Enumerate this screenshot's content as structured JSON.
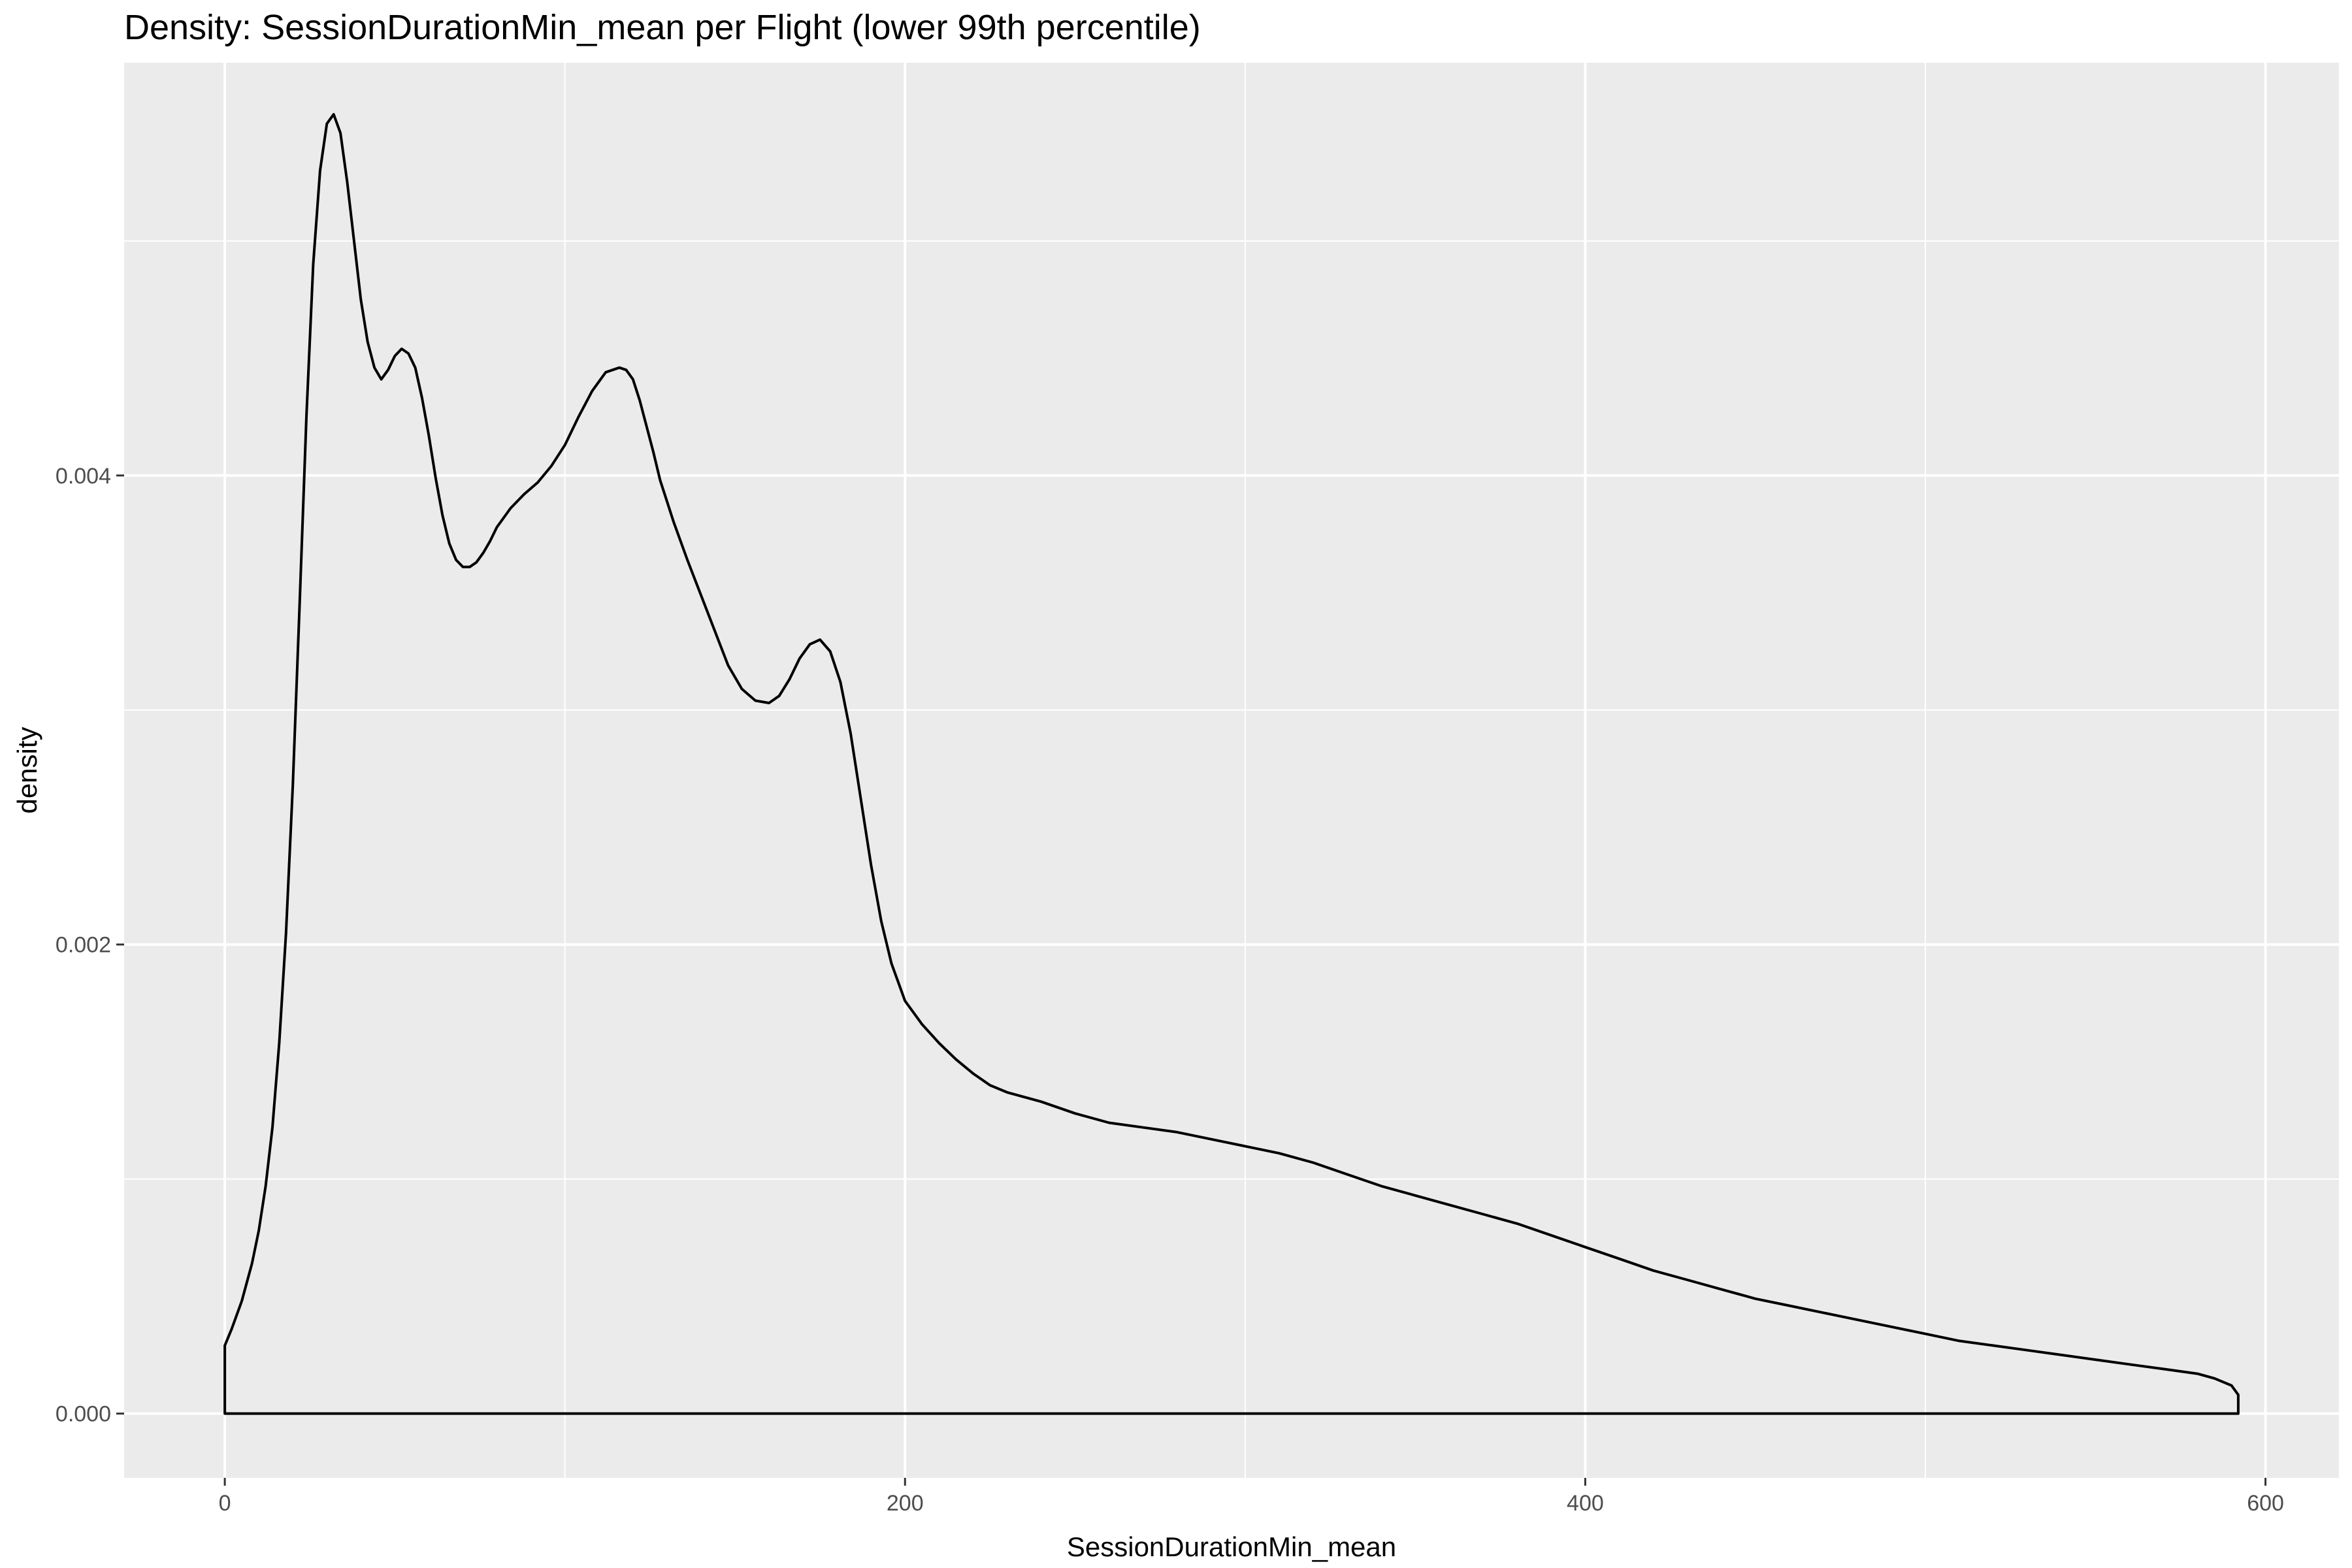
{
  "chart_data": {
    "type": "area",
    "title": "Density: SessionDurationMin_mean per Flight (lower 99th percentile)",
    "xlabel": "SessionDurationMin_mean",
    "ylabel": "density",
    "xlim": [
      -29.6,
      621.6
    ],
    "ylim": [
      -0.000274,
      0.00576
    ],
    "x_ticks": [
      0,
      200,
      400,
      600
    ],
    "x_tick_labels": [
      "0",
      "200",
      "400",
      "600"
    ],
    "y_ticks": [
      0.0,
      0.002,
      0.004
    ],
    "y_tick_labels": [
      "0.000",
      "0.002",
      "0.004"
    ],
    "x_minor_ticks": [
      100,
      300,
      500
    ],
    "y_minor_ticks": [
      0.001,
      0.003,
      0.005
    ],
    "grid": true,
    "colors": {
      "panel_background": "#ebebeb",
      "grid": "#ffffff",
      "line": "#000000",
      "fill": "none"
    },
    "series": [
      {
        "x": [
          0,
          2,
          5,
          8,
          10,
          12,
          14,
          16,
          18,
          20,
          22,
          24,
          26,
          28,
          30,
          32,
          34,
          36,
          38,
          40,
          42,
          44,
          46,
          48,
          50,
          52,
          54,
          56,
          58,
          60,
          62,
          64,
          66,
          68,
          70,
          72,
          74,
          76,
          78,
          80,
          84,
          88,
          92,
          96,
          100,
          104,
          108,
          112,
          116,
          118,
          120,
          122,
          124,
          126,
          128,
          132,
          136,
          140,
          144,
          148,
          152,
          156,
          160,
          163,
          166,
          169,
          172,
          175,
          178,
          181,
          184,
          187,
          190,
          193,
          196,
          200,
          205,
          210,
          215,
          220,
          225,
          230,
          240,
          250,
          260,
          270,
          280,
          290,
          300,
          310,
          320,
          330,
          340,
          350,
          360,
          370,
          380,
          390,
          400,
          410,
          420,
          430,
          440,
          450,
          460,
          470,
          480,
          490,
          500,
          510,
          520,
          530,
          540,
          550,
          560,
          570,
          580,
          585,
          590,
          592
        ],
        "y": [
          0.00029,
          0.00036,
          0.00048,
          0.00064,
          0.00078,
          0.00097,
          0.00122,
          0.00158,
          0.00205,
          0.00268,
          0.00345,
          0.00425,
          0.0049,
          0.0053,
          0.0055,
          0.00554,
          0.00546,
          0.00525,
          0.005,
          0.00475,
          0.00457,
          0.00446,
          0.00441,
          0.00445,
          0.00451,
          0.00454,
          0.00452,
          0.00446,
          0.00433,
          0.00417,
          0.00399,
          0.00383,
          0.00371,
          0.00364,
          0.00361,
          0.00361,
          0.00363,
          0.00367,
          0.00372,
          0.00378,
          0.00386,
          0.00392,
          0.00397,
          0.00404,
          0.00413,
          0.00425,
          0.00436,
          0.00444,
          0.00446,
          0.00445,
          0.00441,
          0.00432,
          0.00421,
          0.0041,
          0.00398,
          0.0038,
          0.00364,
          0.00349,
          0.00334,
          0.00319,
          0.00309,
          0.00304,
          0.00303,
          0.00306,
          0.00313,
          0.00322,
          0.00328,
          0.0033,
          0.00325,
          0.00312,
          0.0029,
          0.00262,
          0.00234,
          0.0021,
          0.00192,
          0.00176,
          0.00166,
          0.00158,
          0.00151,
          0.00145,
          0.0014,
          0.00137,
          0.00133,
          0.00128,
          0.00124,
          0.00122,
          0.0012,
          0.00117,
          0.00114,
          0.00111,
          0.00107,
          0.00102,
          0.00097,
          0.00093,
          0.00089,
          0.00085,
          0.00081,
          0.00076,
          0.00071,
          0.00066,
          0.00061,
          0.00057,
          0.00053,
          0.00049,
          0.00046,
          0.00043,
          0.0004,
          0.00037,
          0.00034,
          0.00031,
          0.00029,
          0.00027,
          0.00025,
          0.00023,
          0.00021,
          0.00019,
          0.00017,
          0.00015,
          0.00012,
          8e-05
        ]
      }
    ]
  }
}
